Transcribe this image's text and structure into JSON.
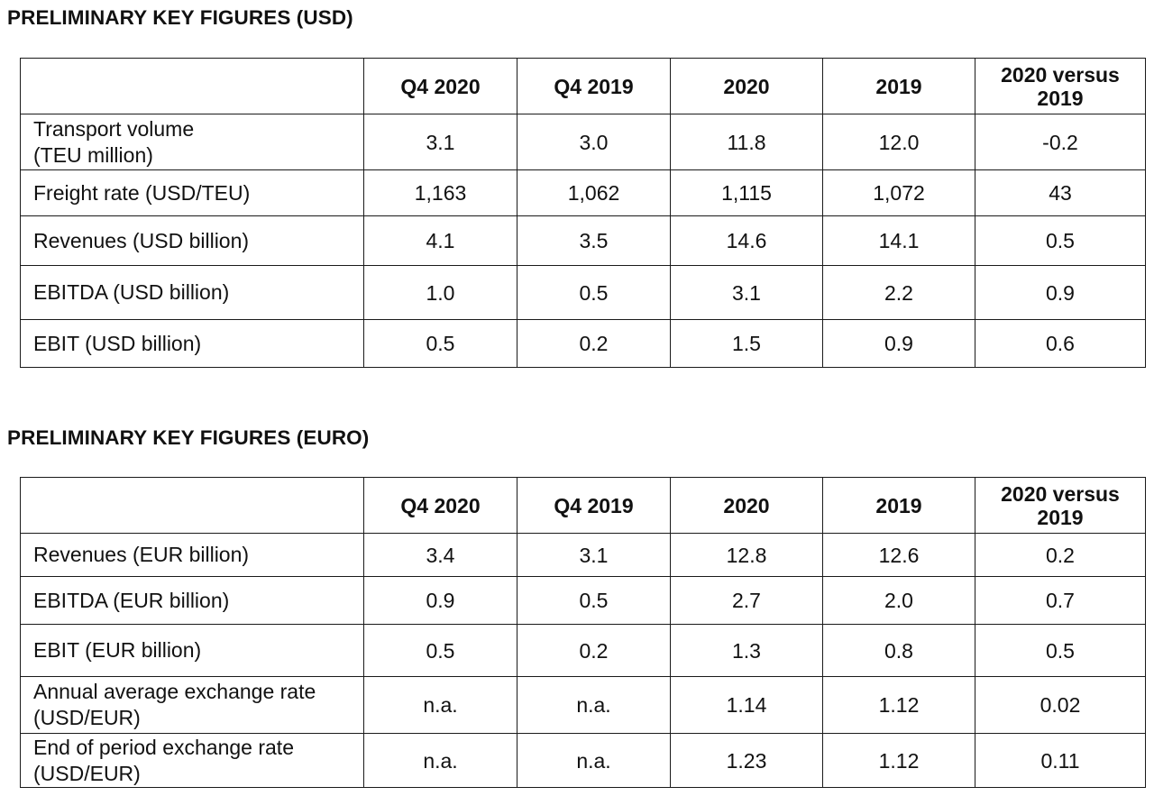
{
  "usd": {
    "title": "PRELIMINARY KEY FIGURES (USD)",
    "headers": [
      "",
      "Q4 2020",
      "Q4 2019",
      "2020",
      "2019",
      "2020 versus 2019"
    ],
    "rows": [
      {
        "label": "Transport volume (TEU million)",
        "values": [
          "3.1",
          "3.0",
          "11.8",
          "12.0",
          "-0.2"
        ]
      },
      {
        "label": "Freight rate (USD/TEU)",
        "values": [
          "1,163",
          "1,062",
          "1,115",
          "1,072",
          "43"
        ]
      },
      {
        "label": "Revenues (USD billion)",
        "values": [
          "4.1",
          "3.5",
          "14.6",
          "14.1",
          "0.5"
        ]
      },
      {
        "label": "EBITDA (USD billion)",
        "values": [
          "1.0",
          "0.5",
          "3.1",
          "2.2",
          "0.9"
        ]
      },
      {
        "label": "EBIT (USD billion)",
        "values": [
          "0.5",
          "0.2",
          "1.5",
          "0.9",
          "0.6"
        ]
      }
    ]
  },
  "eur": {
    "title": "PRELIMINARY KEY FIGURES (EURO)",
    "headers": [
      "",
      "Q4 2020",
      "Q4 2019",
      "2020",
      "2019",
      "2020 versus 2019"
    ],
    "rows": [
      {
        "label": "Revenues (EUR billion)",
        "values": [
          "3.4",
          "3.1",
          "12.8",
          "12.6",
          "0.2"
        ]
      },
      {
        "label": "EBITDA (EUR billion)",
        "values": [
          "0.9",
          "0.5",
          "2.7",
          "2.0",
          "0.7"
        ]
      },
      {
        "label": "EBIT (EUR billion)",
        "values": [
          "0.5",
          "0.2",
          "1.3",
          "0.8",
          "0.5"
        ]
      },
      {
        "label": "Annual average exchange rate (USD/EUR)",
        "values": [
          "n.a.",
          "n.a.",
          "1.14",
          "1.12",
          "0.02"
        ]
      },
      {
        "label": "End of period exchange rate (USD/EUR)",
        "values": [
          "n.a.",
          "n.a.",
          "1.23",
          "1.12",
          "0.11"
        ]
      }
    ]
  }
}
